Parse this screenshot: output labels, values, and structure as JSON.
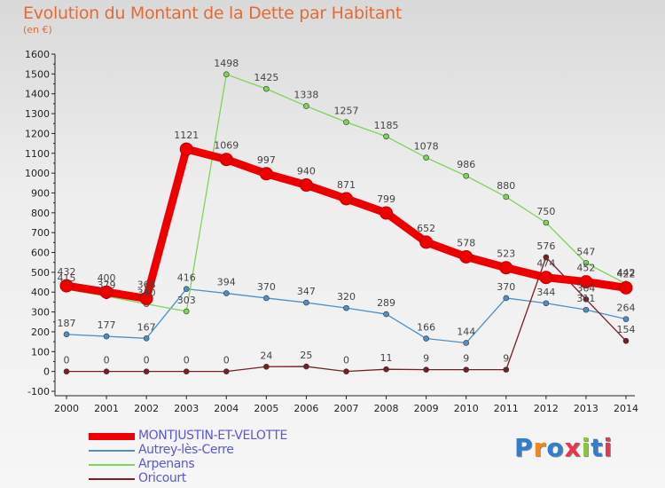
{
  "title": "Evolution du Montant de la Dette par Habitant",
  "subtitle": "(en €)",
  "logo": "Proxiti",
  "chart_data": {
    "type": "line",
    "title": "Evolution du Montant de la Dette par Habitant",
    "ylabel": "(en €)",
    "xlabel": "",
    "x": [
      "2000",
      "2001",
      "2002",
      "2003",
      "2004",
      "2005",
      "2006",
      "2007",
      "2008",
      "2009",
      "2010",
      "2011",
      "2012",
      "2013",
      "2014"
    ],
    "ylim": [
      -100,
      1600
    ],
    "yticks": [
      "-100",
      "0",
      "100",
      "200",
      "300",
      "400",
      "500",
      "600",
      "700",
      "800",
      "900",
      "1000",
      "1100",
      "1200",
      "1300",
      "1400",
      "1500",
      "1600"
    ],
    "grid": false,
    "legend": "bottom-left",
    "series": [
      {
        "name": "MONTJUSTIN-ET-VELOTTE",
        "color": "#ee0000",
        "values": [
          432,
          400,
          368,
          1121,
          1069,
          997,
          940,
          871,
          799,
          652,
          578,
          523,
          474,
          452,
          422
        ],
        "labels": [
          "432",
          "400",
          "368",
          "1121",
          "1069",
          "997",
          "940",
          "871",
          "799",
          "652",
          "578",
          "523",
          "474",
          "452",
          "422"
        ]
      },
      {
        "name": "Autrey-lès-Cerre",
        "color": "#4d90c8",
        "values": [
          187,
          177,
          167,
          416,
          394,
          370,
          347,
          320,
          289,
          166,
          144,
          370,
          344,
          311,
          264
        ],
        "labels": [
          "187",
          "177",
          "167",
          "416",
          "394",
          "370",
          "347",
          "320",
          "289",
          "166",
          "144",
          "370",
          "344",
          "311",
          "264"
        ]
      },
      {
        "name": "Arpenans",
        "color": "#7fd35b",
        "values": [
          415,
          379,
          340,
          303,
          1498,
          1425,
          1338,
          1257,
          1185,
          1078,
          986,
          880,
          750,
          547,
          442
        ],
        "labels": [
          "415",
          "379",
          "340",
          "303",
          "1498",
          "1425",
          "1338",
          "1257",
          "1185",
          "1078",
          "986",
          "880",
          "750",
          "547",
          "442"
        ]
      },
      {
        "name": "Oricourt",
        "color": "#7a1e22",
        "values": [
          0,
          0,
          0,
          0,
          0,
          24,
          25,
          0,
          11,
          9,
          9,
          9,
          576,
          364,
          154
        ],
        "labels": [
          "0",
          "0",
          "0",
          "0",
          "0",
          "24",
          "25",
          "0",
          "11",
          "9",
          "9",
          "9",
          "576",
          "364",
          "154"
        ]
      }
    ]
  }
}
